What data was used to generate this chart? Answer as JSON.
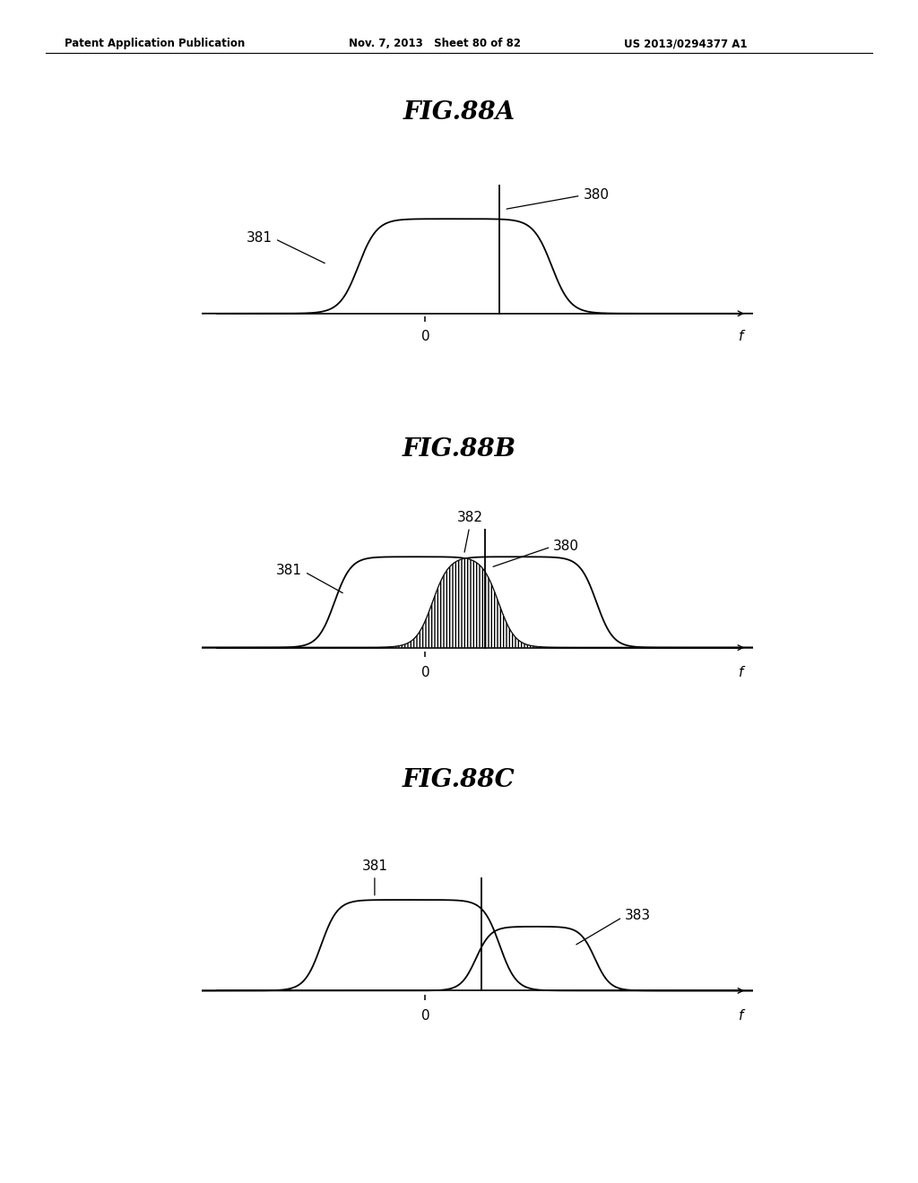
{
  "header_left": "Patent Application Publication",
  "header_mid": "Nov. 7, 2013   Sheet 80 of 82",
  "header_right": "US 2013/0294377 A1",
  "figA_title": "FIG.88A",
  "figB_title": "FIG.88B",
  "figC_title": "FIG.88C",
  "background": "#ffffff",
  "line_color": "#000000"
}
